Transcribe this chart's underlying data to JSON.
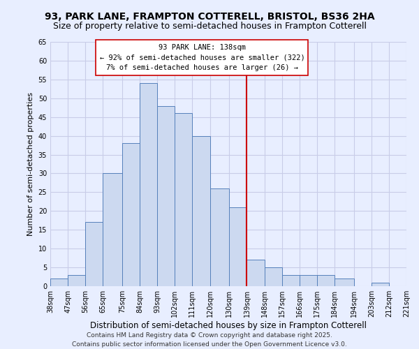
{
  "title": "93, PARK LANE, FRAMPTON COTTERELL, BRISTOL, BS36 2HA",
  "subtitle": "Size of property relative to semi-detached houses in Frampton Cotterell",
  "xlabel": "Distribution of semi-detached houses by size in Frampton Cotterell",
  "ylabel": "Number of semi-detached properties",
  "bin_edges": [
    38,
    47,
    56,
    65,
    75,
    84,
    93,
    102,
    111,
    120,
    130,
    139,
    148,
    157,
    166,
    175,
    184,
    194,
    203,
    212,
    221
  ],
  "bin_labels": [
    "38sqm",
    "47sqm",
    "56sqm",
    "65sqm",
    "75sqm",
    "84sqm",
    "93sqm",
    "102sqm",
    "111sqm",
    "120sqm",
    "130sqm",
    "139sqm",
    "148sqm",
    "157sqm",
    "166sqm",
    "175sqm",
    "184sqm",
    "194sqm",
    "203sqm",
    "212sqm",
    "221sqm"
  ],
  "counts": [
    2,
    3,
    17,
    30,
    38,
    54,
    48,
    46,
    40,
    26,
    21,
    7,
    5,
    3,
    3,
    3,
    2,
    0,
    1,
    0
  ],
  "bar_color": "#ccd9f0",
  "bar_edge_color": "#5580bb",
  "vline_x": 139,
  "vline_color": "#cc0000",
  "annotation_title": "93 PARK LANE: 138sqm",
  "annotation_line1": "← 92% of semi-detached houses are smaller (322)",
  "annotation_line2": "7% of semi-detached houses are larger (26) →",
  "ylim": [
    0,
    65
  ],
  "yticks": [
    0,
    5,
    10,
    15,
    20,
    25,
    30,
    35,
    40,
    45,
    50,
    55,
    60,
    65
  ],
  "background_color": "#e8eeff",
  "grid_color": "#c8cce8",
  "footer_line1": "Contains HM Land Registry data © Crown copyright and database right 2025.",
  "footer_line2": "Contains public sector information licensed under the Open Government Licence v3.0.",
  "title_fontsize": 10,
  "subtitle_fontsize": 9,
  "xlabel_fontsize": 8.5,
  "ylabel_fontsize": 8,
  "tick_fontsize": 7,
  "annotation_fontsize": 7.5,
  "footer_fontsize": 6.5
}
